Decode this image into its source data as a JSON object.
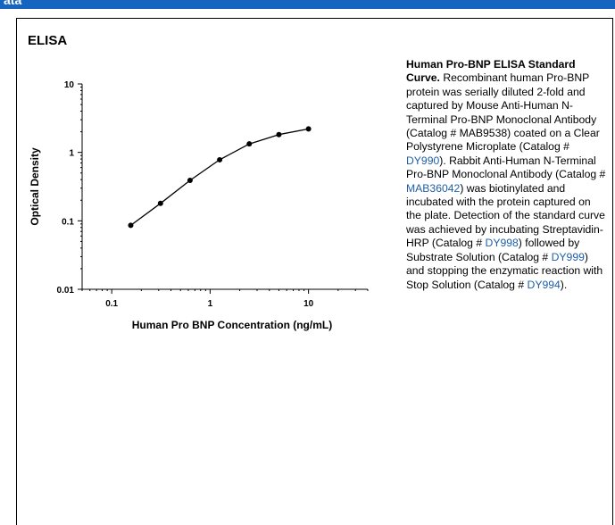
{
  "header": {
    "label": "ata"
  },
  "panel": {
    "title": "ELISA"
  },
  "caption": {
    "title": "Human Pro-BNP ELISA Standard Curve.",
    "parts": [
      {
        "text": " Recombinant human Pro-BNP protein was serially diluted 2-fold and captured by Mouse Anti-Human N-Terminal Pro-BNP Monoclonal Antibody (Catalog # MAB9538) coated on a Clear Polystyrene Microplate (Catalog # ",
        "link": false
      },
      {
        "text": "DY990",
        "link": true
      },
      {
        "text": "). Rabbit Anti-Human N-Terminal Pro-BNP Monoclonal Antibody (Catalog # ",
        "link": false
      },
      {
        "text": "MAB36042",
        "link": true
      },
      {
        "text": ") was biotinylated and incubated with the protein captured on the plate. Detection of the standard curve was achieved by incubating Streptavidin-HRP (Catalog # ",
        "link": false
      },
      {
        "text": "DY998",
        "link": true
      },
      {
        "text": ") followed by Substrate Solution (Catalog # ",
        "link": false
      },
      {
        "text": "DY999",
        "link": true
      },
      {
        "text": ") and stopping the enzymatic reaction with Stop Solution (Catalog # ",
        "link": false
      },
      {
        "text": "DY994",
        "link": true
      },
      {
        "text": ").",
        "link": false
      }
    ]
  },
  "chart_data": {
    "type": "line",
    "xlabel": "Human Pro BNP Concentration (ng/mL)",
    "ylabel": "Optical Density",
    "x_scale": "log",
    "y_scale": "log",
    "xlim": [
      0.05,
      40
    ],
    "ylim": [
      0.01,
      10
    ],
    "x_ticks": [
      0.1,
      1,
      10
    ],
    "x_tick_labels": [
      "0.1",
      "1",
      "10"
    ],
    "y_ticks": [
      0.01,
      0.1,
      1,
      10
    ],
    "y_tick_labels": [
      "0.01",
      "0.1",
      "1",
      "10"
    ],
    "grid": false,
    "series": [
      {
        "x": [
          0.156,
          0.313,
          0.625,
          1.25,
          2.5,
          5,
          10
        ],
        "y": [
          0.086,
          0.18,
          0.39,
          0.78,
          1.33,
          1.82,
          2.2
        ]
      }
    ]
  }
}
